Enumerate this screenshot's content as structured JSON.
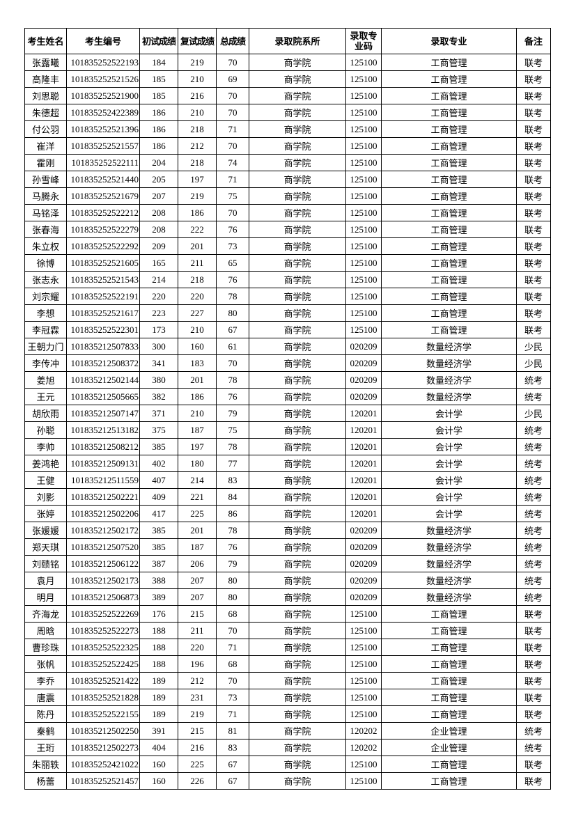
{
  "table": {
    "headers": [
      "考生姓名",
      "考生编号",
      "初试成绩",
      "复试成绩",
      "总成绩",
      "录取院系所",
      "录取专业码",
      "录取专业",
      "备注"
    ],
    "rows": [
      [
        "张露曦",
        "101835252522193",
        184,
        219,
        70,
        "商学院",
        "125100",
        "工商管理",
        "联考"
      ],
      [
        "高隆丰",
        "101835252521526",
        185,
        210,
        69,
        "商学院",
        "125100",
        "工商管理",
        "联考"
      ],
      [
        "刘思聪",
        "101835252521900",
        185,
        216,
        70,
        "商学院",
        "125100",
        "工商管理",
        "联考"
      ],
      [
        "朱德超",
        "101835252422389",
        186,
        210,
        70,
        "商学院",
        "125100",
        "工商管理",
        "联考"
      ],
      [
        "付公羽",
        "101835252521396",
        186,
        218,
        71,
        "商学院",
        "125100",
        "工商管理",
        "联考"
      ],
      [
        "崔洋",
        "101835252521557",
        186,
        212,
        70,
        "商学院",
        "125100",
        "工商管理",
        "联考"
      ],
      [
        "霍刚",
        "101835252522111",
        204,
        218,
        74,
        "商学院",
        "125100",
        "工商管理",
        "联考"
      ],
      [
        "孙雪峰",
        "101835252521440",
        205,
        197,
        71,
        "商学院",
        "125100",
        "工商管理",
        "联考"
      ],
      [
        "马腾永",
        "101835252521679",
        207,
        219,
        75,
        "商学院",
        "125100",
        "工商管理",
        "联考"
      ],
      [
        "马铭泽",
        "101835252522212",
        208,
        186,
        70,
        "商学院",
        "125100",
        "工商管理",
        "联考"
      ],
      [
        "张春海",
        "101835252522279",
        208,
        222,
        76,
        "商学院",
        "125100",
        "工商管理",
        "联考"
      ],
      [
        "朱立权",
        "101835252522292",
        209,
        201,
        73,
        "商学院",
        "125100",
        "工商管理",
        "联考"
      ],
      [
        "徐博",
        "101835252521605",
        165,
        211,
        65,
        "商学院",
        "125100",
        "工商管理",
        "联考"
      ],
      [
        "张志永",
        "101835252521543",
        214,
        218,
        76,
        "商学院",
        "125100",
        "工商管理",
        "联考"
      ],
      [
        "刘宗耀",
        "101835252522191",
        220,
        220,
        78,
        "商学院",
        "125100",
        "工商管理",
        "联考"
      ],
      [
        "李想",
        "101835252521617",
        223,
        227,
        80,
        "商学院",
        "125100",
        "工商管理",
        "联考"
      ],
      [
        "李冠霖",
        "101835252522301",
        173,
        210,
        67,
        "商学院",
        "125100",
        "工商管理",
        "联考"
      ],
      [
        "王朝力门",
        "101835212507833",
        300,
        160,
        61,
        "商学院",
        "020209",
        "数量经济学",
        "少民"
      ],
      [
        "李传冲",
        "101835212508372",
        341,
        183,
        70,
        "商学院",
        "020209",
        "数量经济学",
        "少民"
      ],
      [
        "姜旭",
        "101835212502144",
        380,
        201,
        78,
        "商学院",
        "020209",
        "数量经济学",
        "统考"
      ],
      [
        "王元",
        "101835212505665",
        382,
        186,
        76,
        "商学院",
        "020209",
        "数量经济学",
        "统考"
      ],
      [
        "胡欣雨",
        "101835212507147",
        371,
        210,
        79,
        "商学院",
        "120201",
        "会计学",
        "少民"
      ],
      [
        "孙聪",
        "101835212513182",
        375,
        187,
        75,
        "商学院",
        "120201",
        "会计学",
        "统考"
      ],
      [
        "李帅",
        "101835212508212",
        385,
        197,
        78,
        "商学院",
        "120201",
        "会计学",
        "统考"
      ],
      [
        "姜鸿艳",
        "101835212509131",
        402,
        180,
        77,
        "商学院",
        "120201",
        "会计学",
        "统考"
      ],
      [
        "王健",
        "101835212511559",
        407,
        214,
        83,
        "商学院",
        "120201",
        "会计学",
        "统考"
      ],
      [
        "刘影",
        "101835212502221",
        409,
        221,
        84,
        "商学院",
        "120201",
        "会计学",
        "统考"
      ],
      [
        "张婷",
        "101835212502206",
        417,
        225,
        86,
        "商学院",
        "120201",
        "会计学",
        "统考"
      ],
      [
        "张媛媛",
        "101835212502172",
        385,
        201,
        78,
        "商学院",
        "020209",
        "数量经济学",
        "统考"
      ],
      [
        "郑天琪",
        "101835212507520",
        385,
        187,
        76,
        "商学院",
        "020209",
        "数量经济学",
        "统考"
      ],
      [
        "刘赜铭",
        "101835212506122",
        387,
        206,
        79,
        "商学院",
        "020209",
        "数量经济学",
        "统考"
      ],
      [
        "袁月",
        "101835212502173",
        388,
        207,
        80,
        "商学院",
        "020209",
        "数量经济学",
        "统考"
      ],
      [
        "明月",
        "101835212506873",
        389,
        207,
        80,
        "商学院",
        "020209",
        "数量经济学",
        "统考"
      ],
      [
        "齐海龙",
        "101835252522269",
        176,
        215,
        68,
        "商学院",
        "125100",
        "工商管理",
        "联考"
      ],
      [
        "周晗",
        "101835252522273",
        188,
        211,
        70,
        "商学院",
        "125100",
        "工商管理",
        "联考"
      ],
      [
        "曹珍珠",
        "101835252522325",
        188,
        220,
        71,
        "商学院",
        "125100",
        "工商管理",
        "联考"
      ],
      [
        "张帆",
        "101835252522425",
        188,
        196,
        68,
        "商学院",
        "125100",
        "工商管理",
        "联考"
      ],
      [
        "李乔",
        "101835252521422",
        189,
        212,
        70,
        "商学院",
        "125100",
        "工商管理",
        "联考"
      ],
      [
        "唐震",
        "101835252521828",
        189,
        231,
        73,
        "商学院",
        "125100",
        "工商管理",
        "联考"
      ],
      [
        "陈丹",
        "101835252522155",
        189,
        219,
        71,
        "商学院",
        "125100",
        "工商管理",
        "联考"
      ],
      [
        "秦鹤",
        "101835212502250",
        391,
        215,
        81,
        "商学院",
        "120202",
        "企业管理",
        "统考"
      ],
      [
        "王珩",
        "101835212502273",
        404,
        216,
        83,
        "商学院",
        "120202",
        "企业管理",
        "统考"
      ],
      [
        "朱丽轶",
        "101835252421022",
        160,
        225,
        67,
        "商学院",
        "125100",
        "工商管理",
        "联考"
      ],
      [
        "杨蕾",
        "101835252521457",
        160,
        226,
        67,
        "商学院",
        "125100",
        "工商管理",
        "联考"
      ]
    ]
  }
}
